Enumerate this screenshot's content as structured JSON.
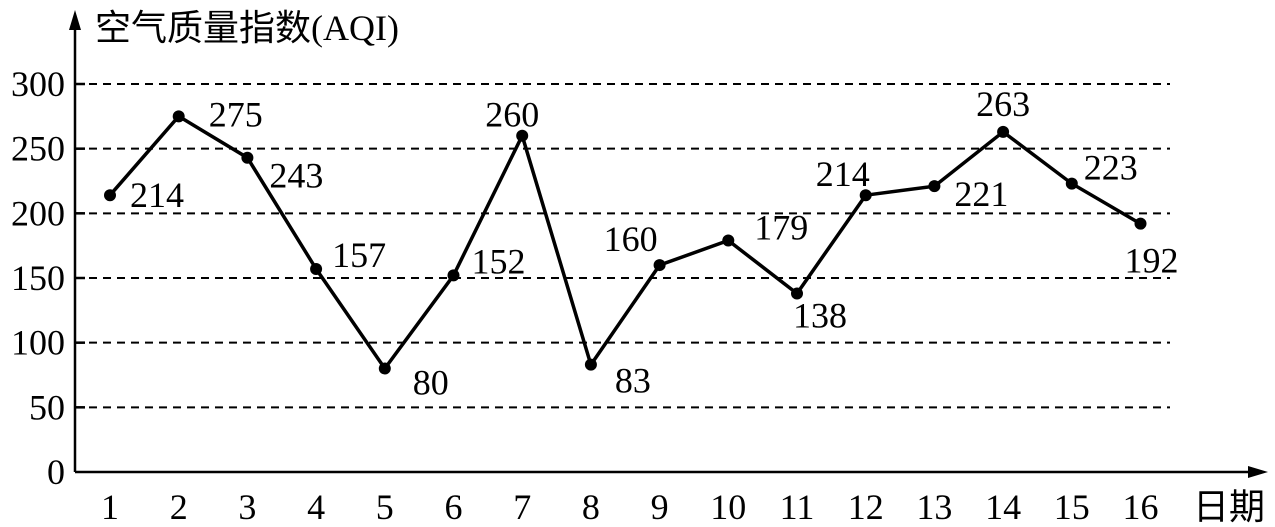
{
  "chart_data": {
    "type": "line",
    "ylabel": "空气质量指数(AQI)",
    "xlabel": "日期",
    "ylim": [
      0,
      300
    ],
    "y_ticks": [
      0,
      50,
      100,
      150,
      200,
      250,
      300
    ],
    "grid": "dashed horizontal",
    "categories": [
      "1",
      "2",
      "3",
      "4",
      "5",
      "6",
      "7",
      "8",
      "9",
      "10",
      "11",
      "12",
      "13",
      "14",
      "15",
      "16"
    ],
    "series": [
      {
        "values": [
          214,
          275,
          243,
          157,
          80,
          152,
          260,
          83,
          160,
          179,
          138,
          214,
          221,
          263,
          223,
          192
        ],
        "color": "#000000"
      }
    ]
  }
}
